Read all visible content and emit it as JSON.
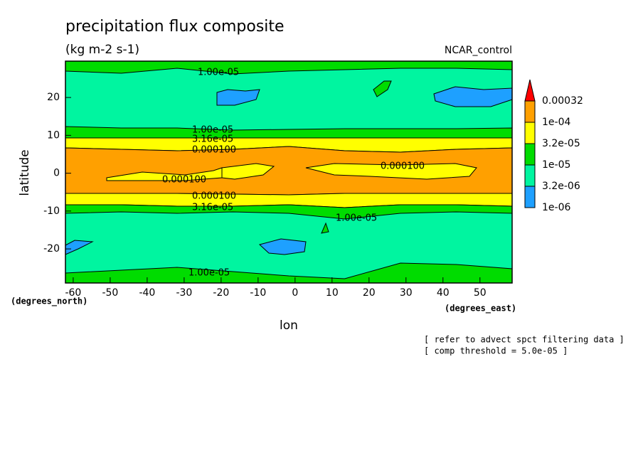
{
  "chart_data": {
    "type": "contour",
    "title": "precipitation flux composite",
    "subtitle": "(kg m-2 s-1)",
    "dataset": "NCAR_control",
    "x_label": "lon",
    "y_label": "latitude",
    "x_unit": "(degrees_east)",
    "y_unit": "(degrees_north)",
    "xlim": [
      -62.1,
      58.7
    ],
    "ylim": [
      -29.0,
      29.6
    ],
    "xticks": [
      -60,
      -50,
      -40,
      -30,
      -20,
      -10,
      0,
      10,
      20,
      30,
      40,
      50
    ],
    "yticks": [
      -20,
      -10,
      0,
      10,
      20
    ],
    "levels": [
      {
        "value": 1e-06,
        "label": "1e-06"
      },
      {
        "value": 3.2e-06,
        "label": "3.2e-06"
      },
      {
        "value": 1e-05,
        "label": "1e-05"
      },
      {
        "value": 3.2e-05,
        "label": "3.2e-05"
      },
      {
        "value": 0.0001,
        "label": "1e-04"
      },
      {
        "value": 0.00032,
        "label": "0.00032"
      }
    ],
    "colors": [
      "#1ea0ff",
      "#00f5a0",
      "#00dc00",
      "#ffff00",
      "#ffa000",
      "#ff0000"
    ],
    "contour_labels": [
      "1.00e-05",
      "1.00e-05",
      "3.16e-05",
      "0.000100",
      "0.000100",
      "0.000100",
      "0.000100",
      "3.16e-05",
      "1.00e-05",
      "1.00e-05"
    ],
    "notes": [
      "[ refer to advect spct filtering data ]",
      "[ comp threshold = 5.0e-05 ]"
    ]
  }
}
